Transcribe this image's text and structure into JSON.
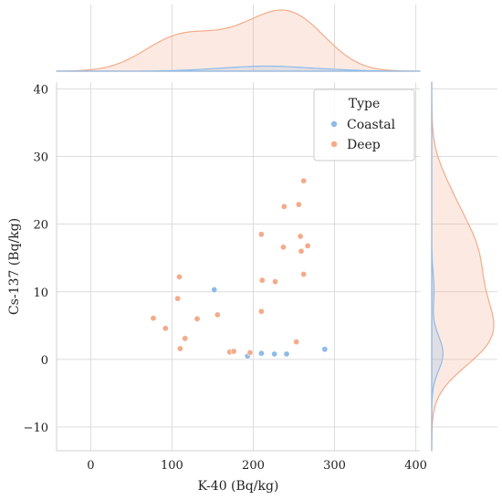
{
  "chart_data": {
    "type": "scatter",
    "xlabel": "K-40 (Bq/kg)",
    "ylabel": "Cs-137 (Bq/kg)",
    "xlim": [
      -42,
      405
    ],
    "ylim": [
      -13.5,
      41
    ],
    "xticks": [
      0,
      100,
      200,
      300,
      400
    ],
    "yticks": [
      -10,
      0,
      10,
      20,
      30,
      40
    ],
    "xtick_labels": [
      "0",
      "100",
      "200",
      "300",
      "400"
    ],
    "ytick_labels": [
      "−10",
      "0",
      "10",
      "20",
      "30",
      "40"
    ],
    "grid": true,
    "legend": {
      "title": "Type",
      "placement": "top-right"
    },
    "marginals": {
      "top": "kde",
      "right": "kde"
    },
    "series": [
      {
        "name": "Coastal",
        "color": "#8fbbe8",
        "points": [
          [
            152,
            10.3
          ],
          [
            193,
            0.5
          ],
          [
            210,
            0.9
          ],
          [
            226,
            0.8
          ],
          [
            241,
            0.8
          ],
          [
            288,
            1.5
          ]
        ]
      },
      {
        "name": "Deep",
        "color": "#f4ab8a",
        "points": [
          [
            77,
            6.1
          ],
          [
            92,
            4.6
          ],
          [
            107,
            9.0
          ],
          [
            109,
            12.2
          ],
          [
            110,
            1.6
          ],
          [
            116,
            3.1
          ],
          [
            131,
            6.0
          ],
          [
            156,
            6.6
          ],
          [
            171,
            1.1
          ],
          [
            176,
            1.2
          ],
          [
            196,
            1.0
          ],
          [
            210,
            7.1
          ],
          [
            210,
            18.5
          ],
          [
            211,
            11.7
          ],
          [
            227,
            11.5
          ],
          [
            237,
            16.6
          ],
          [
            238,
            22.6
          ],
          [
            253,
            2.6
          ],
          [
            256,
            22.9
          ],
          [
            258,
            18.2
          ],
          [
            259,
            16.0
          ],
          [
            262,
            26.4
          ],
          [
            262,
            12.6
          ],
          [
            267,
            16.8
          ]
        ]
      }
    ]
  }
}
